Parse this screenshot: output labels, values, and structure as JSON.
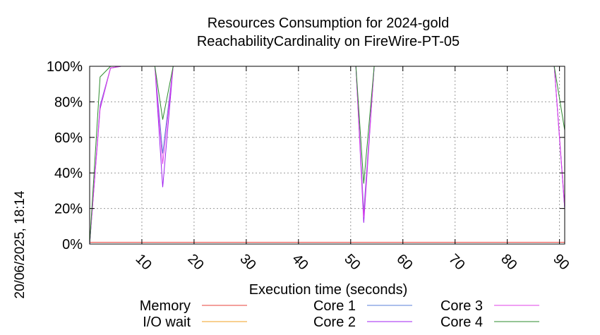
{
  "chart_data": {
    "type": "line",
    "title": [
      "Resources Consumption for 2024-gold",
      "ReachabilityCardinality on FireWire-PT-05"
    ],
    "xlabel": "Execution time (seconds)",
    "ylabel": "",
    "timestamp": "20/06/2025, 18:14",
    "xlim": [
      0,
      91
    ],
    "ylim": [
      0,
      100
    ],
    "xticks": [
      10,
      20,
      30,
      40,
      50,
      60,
      70,
      80,
      90
    ],
    "yticks": [
      0,
      20,
      40,
      60,
      80,
      100
    ],
    "ytick_labels": [
      "0%",
      "20%",
      "40%",
      "60%",
      "80%",
      "100%"
    ],
    "grid": true,
    "legend_position": "bottom",
    "series": [
      {
        "name": "Memory",
        "color": "#e8413a",
        "x": [
          0,
          91
        ],
        "y": [
          1,
          1
        ]
      },
      {
        "name": "I/O wait",
        "color": "#f0a020",
        "x": [
          0,
          91
        ],
        "y": [
          0,
          0
        ]
      },
      {
        "name": "Core 1",
        "color": "#5a7fd8",
        "x": [
          0,
          2,
          4,
          6,
          12.5,
          14,
          16,
          51,
          52.5,
          54.5,
          89,
          91
        ],
        "y": [
          0,
          78,
          99,
          100,
          100,
          51,
          100,
          100,
          18,
          100,
          100,
          20
        ]
      },
      {
        "name": "Core 2",
        "color": "#a020f0",
        "x": [
          0,
          2,
          4,
          6,
          12.5,
          14,
          16,
          51,
          52.5,
          54.5,
          89,
          91
        ],
        "y": [
          0,
          76,
          99,
          100,
          100,
          32,
          100,
          100,
          12,
          100,
          100,
          20
        ]
      },
      {
        "name": "Core 3",
        "color": "#e040e8",
        "x": [
          0,
          2,
          4,
          6,
          12.5,
          14,
          16,
          51,
          52.5,
          54.5,
          89,
          91
        ],
        "y": [
          0,
          77,
          99,
          100,
          100,
          45,
          100,
          100,
          15,
          100,
          100,
          21
        ]
      },
      {
        "name": "Core 4",
        "color": "#2e8b2e",
        "x": [
          0,
          2,
          4,
          6,
          12.5,
          14,
          16,
          51,
          52.5,
          54.5,
          89,
          91
        ],
        "y": [
          0,
          94,
          100,
          100,
          100,
          70,
          100,
          100,
          34,
          100,
          100,
          64
        ]
      }
    ]
  }
}
